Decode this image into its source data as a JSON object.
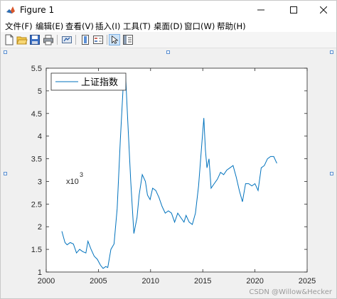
{
  "window": {
    "title": "Figure 1"
  },
  "menu": [
    "文件(F)",
    "编辑(E)",
    "查看(V)",
    "插入(I)",
    "工具(T)",
    "桌面(D)",
    "窗口(W)",
    "帮助(H)"
  ],
  "toolbar": {
    "icons": [
      "new-figure-icon",
      "open-file-icon",
      "save-icon",
      "print-icon",
      "link-icon",
      "insert-colorbar-icon",
      "insert-legend-icon",
      "pointer-icon",
      "property-inspector-icon"
    ]
  },
  "colors": {
    "line": "#0072bd",
    "axes": "#262626",
    "background": "#ffffff"
  },
  "chart_data": {
    "type": "line",
    "title": "",
    "xlabel": "",
    "ylabel": "",
    "xlim": [
      2000,
      2025
    ],
    "ylim": [
      1,
      5.5
    ],
    "xticks": [
      "2000",
      "2005",
      "2010",
      "2015",
      "2020",
      "2025"
    ],
    "yticks": [
      "1",
      "1.5",
      "2",
      "2.5",
      "3",
      "3.5",
      "4",
      "4.5",
      "5",
      "5.5"
    ],
    "y_multiplier": "x10",
    "y_multiplier_exp": "3",
    "legend": "top-left",
    "grid": false,
    "series": [
      {
        "name": "上证指数",
        "x": [
          2001.5,
          2001.8,
          2002.0,
          2002.3,
          2002.6,
          2002.9,
          2003.2,
          2003.5,
          2003.8,
          2004.0,
          2004.3,
          2004.6,
          2004.9,
          2005.2,
          2005.45,
          2005.7,
          2005.9,
          2006.2,
          2006.5,
          2006.8,
          2007.1,
          2007.4,
          2007.6,
          2007.8,
          2008.1,
          2008.4,
          2008.7,
          2008.9,
          2009.2,
          2009.5,
          2009.7,
          2009.95,
          2010.2,
          2010.5,
          2010.8,
          2011.1,
          2011.4,
          2011.7,
          2012.0,
          2012.3,
          2012.6,
          2012.9,
          2013.2,
          2013.4,
          2013.7,
          2014.0,
          2014.3,
          2014.6,
          2014.9,
          2015.1,
          2015.25,
          2015.4,
          2015.6,
          2015.8,
          2016.1,
          2016.4,
          2016.7,
          2017.0,
          2017.3,
          2017.6,
          2017.9,
          2018.2,
          2018.5,
          2018.8,
          2019.1,
          2019.4,
          2019.7,
          2020.0,
          2020.3,
          2020.6,
          2020.9,
          2021.2,
          2021.5,
          2021.8,
          2022.1
        ],
        "y": [
          1.9,
          1.65,
          1.6,
          1.65,
          1.62,
          1.42,
          1.5,
          1.45,
          1.42,
          1.68,
          1.5,
          1.35,
          1.28,
          1.15,
          1.08,
          1.12,
          1.1,
          1.5,
          1.62,
          2.4,
          3.9,
          5.2,
          5.35,
          4.4,
          3.0,
          1.85,
          2.2,
          2.7,
          3.15,
          3.0,
          2.7,
          2.6,
          2.85,
          2.8,
          2.65,
          2.45,
          2.3,
          2.35,
          2.3,
          2.1,
          2.3,
          2.2,
          2.1,
          2.25,
          2.1,
          2.05,
          2.3,
          2.9,
          3.8,
          4.4,
          3.7,
          3.3,
          3.5,
          2.85,
          2.95,
          3.05,
          3.2,
          3.15,
          3.25,
          3.3,
          3.35,
          3.1,
          2.8,
          2.55,
          2.95,
          2.95,
          2.9,
          2.95,
          2.8,
          3.3,
          3.35,
          3.5,
          3.55,
          3.55,
          3.4
        ]
      }
    ]
  }
}
